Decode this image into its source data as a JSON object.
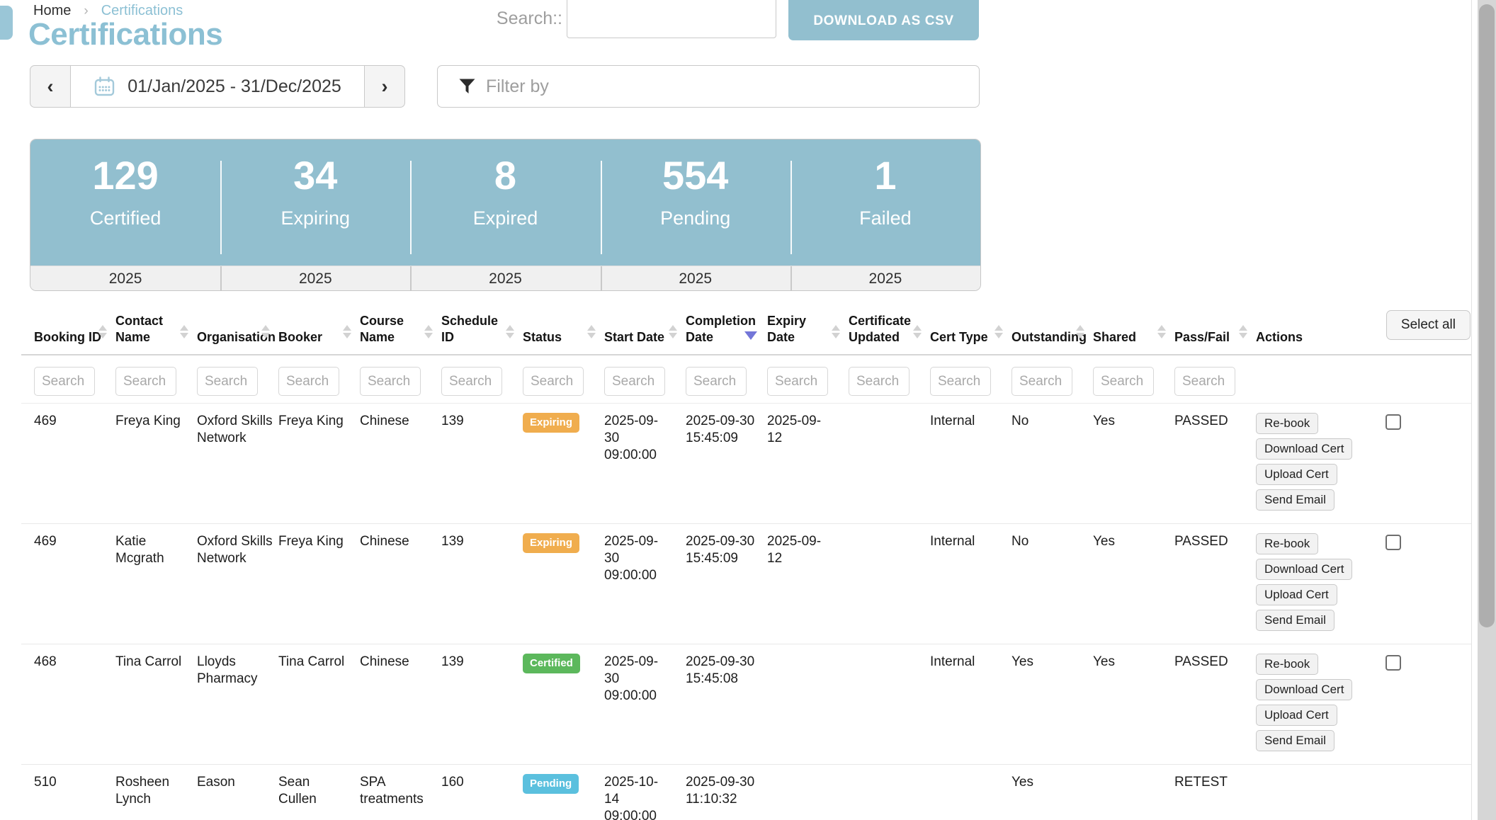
{
  "breadcrumb": {
    "home": "Home",
    "separator": "›",
    "current": "Certifications"
  },
  "page": {
    "title": "Certifications"
  },
  "topbar": {
    "search_label": "Search::",
    "search_value": "",
    "download_csv": "DOWNLOAD AS CSV"
  },
  "controls": {
    "prev": "‹",
    "next": "›",
    "date_range": "01/Jan/2025 - 31/Dec/2025",
    "filter_placeholder": "Filter by"
  },
  "stats": {
    "cards": [
      {
        "value": "129",
        "label": "Certified",
        "year": "2025"
      },
      {
        "value": "34",
        "label": "Expiring",
        "year": "2025"
      },
      {
        "value": "8",
        "label": "Expired",
        "year": "2025"
      },
      {
        "value": "554",
        "label": "Pending",
        "year": "2025"
      },
      {
        "value": "1",
        "label": "Failed",
        "year": "2025"
      }
    ]
  },
  "table": {
    "search_placeholder": "Search",
    "select_all": "Select all",
    "columns": [
      {
        "key": "booking_id",
        "label": "Booking ID",
        "sort": "both",
        "searchable": true,
        "wrap": false
      },
      {
        "key": "contact_name",
        "label": "Contact Name",
        "sort": "both",
        "searchable": true,
        "wrap": true
      },
      {
        "key": "organisation",
        "label": "Organisation",
        "sort": "both",
        "searchable": true,
        "wrap": false
      },
      {
        "key": "booker",
        "label": "Booker",
        "sort": "both",
        "searchable": true,
        "wrap": false
      },
      {
        "key": "course_name",
        "label": "Course Name",
        "sort": "both",
        "searchable": true,
        "wrap": true
      },
      {
        "key": "schedule_id",
        "label": "Schedule ID",
        "sort": "both",
        "searchable": true,
        "wrap": true
      },
      {
        "key": "status",
        "label": "Status",
        "sort": "both",
        "searchable": true,
        "wrap": false
      },
      {
        "key": "start_date",
        "label": "Start Date",
        "sort": "both",
        "searchable": true,
        "wrap": false
      },
      {
        "key": "completion_date",
        "label": "Completion Date",
        "sort": "desc",
        "searchable": true,
        "wrap": true
      },
      {
        "key": "expiry_date",
        "label": "Expiry Date",
        "sort": "both",
        "searchable": true,
        "wrap": true
      },
      {
        "key": "certificate_updated",
        "label": "Certificate Updated",
        "sort": "both",
        "searchable": true,
        "wrap": true
      },
      {
        "key": "cert_type",
        "label": "Cert Type",
        "sort": "both",
        "searchable": true,
        "wrap": false
      },
      {
        "key": "outstanding",
        "label": "Outstanding",
        "sort": "both",
        "searchable": true,
        "wrap": false
      },
      {
        "key": "shared",
        "label": "Shared",
        "sort": "both",
        "searchable": true,
        "wrap": false
      },
      {
        "key": "pass_fail",
        "label": "Pass/Fail",
        "sort": "both",
        "searchable": true,
        "wrap": false
      },
      {
        "key": "actions",
        "label": "Actions",
        "sort": "none",
        "searchable": false,
        "wrap": false
      },
      {
        "key": "select",
        "label": "",
        "sort": "none",
        "searchable": false,
        "wrap": false
      }
    ],
    "rows": [
      {
        "booking_id": "469",
        "contact_name": "Freya King",
        "organisation": "Oxford Skills Network",
        "booker": "Freya King",
        "course_name": "Chinese",
        "schedule_id": "139",
        "status": "Expiring",
        "start_date": "2025-09-30 09:00:00",
        "completion_date": "2025-09-30 15:45:09",
        "expiry_date": "2025-09-12",
        "certificate_updated": "",
        "cert_type": "Internal",
        "outstanding": "No",
        "shared": "Yes",
        "pass_fail": "PASSED",
        "actions": [
          "Re-book",
          "Download Cert",
          "Upload Cert",
          "Send Email"
        ],
        "selectable": true
      },
      {
        "booking_id": "469",
        "contact_name": "Katie Mcgrath",
        "organisation": "Oxford Skills Network",
        "booker": "Freya King",
        "course_name": "Chinese",
        "schedule_id": "139",
        "status": "Expiring",
        "start_date": "2025-09-30 09:00:00",
        "completion_date": "2025-09-30 15:45:09",
        "expiry_date": "2025-09-12",
        "certificate_updated": "",
        "cert_type": "Internal",
        "outstanding": "No",
        "shared": "Yes",
        "pass_fail": "PASSED",
        "actions": [
          "Re-book",
          "Download Cert",
          "Upload Cert",
          "Send Email"
        ],
        "selectable": true
      },
      {
        "booking_id": "468",
        "contact_name": "Tina Carrol",
        "organisation": "Lloyds Pharmacy",
        "booker": "Tina Carrol",
        "course_name": "Chinese",
        "schedule_id": "139",
        "status": "Certified",
        "start_date": "2025-09-30 09:00:00",
        "completion_date": "2025-09-30 15:45:08",
        "expiry_date": "",
        "certificate_updated": "",
        "cert_type": "Internal",
        "outstanding": "Yes",
        "shared": "Yes",
        "pass_fail": "PASSED",
        "actions": [
          "Re-book",
          "Download Cert",
          "Upload Cert",
          "Send Email"
        ],
        "selectable": true
      },
      {
        "booking_id": "510",
        "contact_name": "Rosheen Lynch",
        "organisation": "Eason",
        "booker": "Sean Cullen",
        "course_name": "SPA treatments",
        "schedule_id": "160",
        "status": "Pending",
        "start_date": "2025-10-14 09:00:00",
        "completion_date": "2025-09-30 11:10:32",
        "expiry_date": "",
        "certificate_updated": "",
        "cert_type": "",
        "outstanding": "Yes",
        "shared": "",
        "pass_fail": "RETEST",
        "actions": [],
        "selectable": false
      }
    ]
  },
  "colors": {
    "brand": "#92bfcf",
    "title": "#8cc0d4",
    "sort_active": "#7376d8",
    "status": {
      "Expiring": "#f0ad4e",
      "Certified": "#5cb85c",
      "Pending": "#5bc0de"
    }
  }
}
